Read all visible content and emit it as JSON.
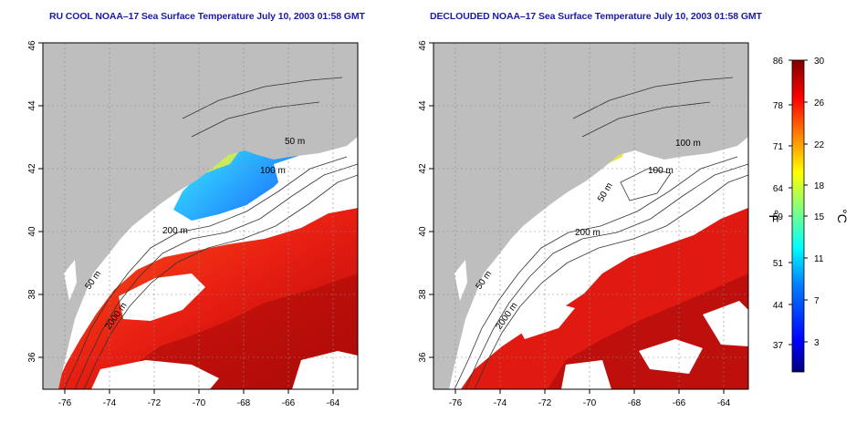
{
  "left_map": {
    "title": "RU COOL NOAA–17 Sea Surface Temperature July 10, 2003 01:58 GMT",
    "contour_labels": [
      "50 m",
      "100 m",
      "200 m",
      "50 m",
      "2000 m"
    ]
  },
  "right_map": {
    "title": "DECLOUDED NOAA–17 Sea Surface Temperature July 10, 2003 01:58 GMT",
    "contour_labels": [
      "100 m",
      "100 m",
      "50 m",
      "200 m",
      "50 m",
      "2000 m"
    ]
  },
  "axes": {
    "lon_ticks": [
      "-76",
      "-74",
      "-72",
      "-70",
      "-68",
      "-66",
      "-64"
    ],
    "lat_ticks": [
      "36",
      "38",
      "40",
      "42",
      "44",
      "46"
    ],
    "lon_range": [
      -77.2,
      -62.8
    ],
    "lat_range": [
      35.0,
      46.0
    ],
    "grid": "dotted"
  },
  "colorbar": {
    "fahrenheit_ticks": [
      "86",
      "78",
      "71",
      "64",
      "59",
      "51",
      "44",
      "37"
    ],
    "celsius_ticks": [
      "30",
      "26",
      "22",
      "18",
      "15",
      "11",
      "7",
      "3"
    ],
    "fahrenheit_unit": "°F",
    "celsius_unit": "°C",
    "range_c": [
      0,
      30
    ],
    "colors": [
      "#00007f",
      "#0000ff",
      "#0080ff",
      "#00ffff",
      "#80ff80",
      "#ffff00",
      "#ff8000",
      "#ff0000",
      "#7f0000"
    ]
  },
  "colors": {
    "land": "#bebebe",
    "cloud": "#ffffff",
    "title": "#1a1aa8"
  }
}
